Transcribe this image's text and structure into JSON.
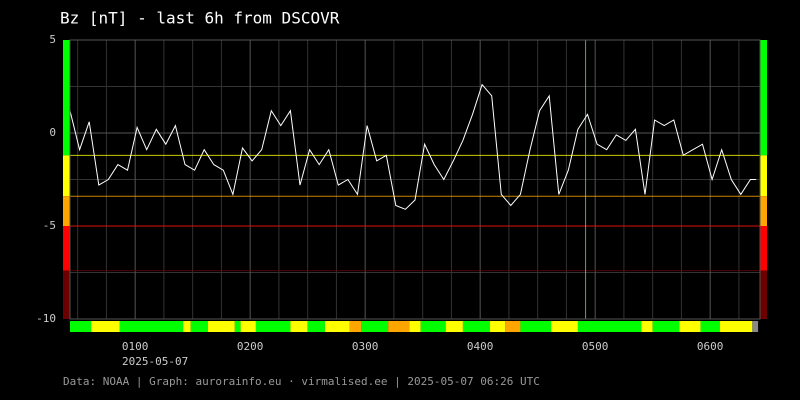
{
  "chart_data": {
    "type": "line",
    "title": "Bz [nT] - last 6h from DSCOVR",
    "footer": "Data: NOAA | Graph: aurorainfo.eu · virmalised.ee | 2025-05-07 06:26 UTC",
    "date_label": "2025-05-07",
    "xlim": [
      26,
      386
    ],
    "xticks": [
      {
        "value": 60,
        "label": "0100"
      },
      {
        "value": 120,
        "label": "0200"
      },
      {
        "value": 180,
        "label": "0300"
      },
      {
        "value": 240,
        "label": "0400"
      },
      {
        "value": 300,
        "label": "0500"
      },
      {
        "value": 360,
        "label": "0600"
      }
    ],
    "x_minor_ticks": [
      30,
      45,
      75,
      90,
      105,
      135,
      150,
      165,
      195,
      210,
      225,
      255,
      270,
      285,
      315,
      330,
      345,
      375
    ],
    "ylim": [
      -10,
      5
    ],
    "yticks": [
      5,
      0,
      -5,
      -10
    ],
    "y_minor_ticks": [
      2.5,
      -2.5,
      -7.5
    ],
    "grid": true,
    "line_color": "#ffffff",
    "x": [
      26,
      31,
      36,
      41,
      46,
      51,
      56,
      61,
      66,
      71,
      76,
      81,
      86,
      91,
      96,
      101,
      106,
      111,
      116,
      121,
      126,
      131,
      136,
      141,
      146,
      151,
      156,
      161,
      166,
      171,
      176,
      181,
      186,
      191,
      196,
      201,
      206,
      211,
      216,
      221,
      226,
      231,
      236,
      241,
      246,
      251,
      256,
      261,
      266,
      271,
      276,
      281,
      286,
      291,
      296,
      301,
      306,
      311,
      316,
      321,
      326,
      331,
      336,
      341,
      346,
      351,
      356,
      361,
      366,
      371,
      376,
      381,
      384
    ],
    "values": [
      1.2,
      -0.9,
      0.6,
      -2.8,
      -2.5,
      -1.7,
      -2.0,
      0.3,
      -0.9,
      0.2,
      -0.6,
      0.4,
      -1.7,
      -2.0,
      -0.9,
      -1.7,
      -2.0,
      -3.3,
      -0.8,
      -1.5,
      -0.9,
      1.2,
      0.4,
      1.2,
      -2.8,
      -0.9,
      -1.7,
      -0.9,
      -2.8,
      -2.5,
      -3.3,
      0.4,
      -1.5,
      -1.2,
      -3.9,
      -4.1,
      -3.6,
      -0.6,
      -1.7,
      -2.5,
      -1.5,
      -0.4,
      1.0,
      2.6,
      2.0,
      -3.3,
      -3.9,
      -3.3,
      -0.9,
      1.2,
      2.0,
      -3.3,
      -2.0,
      0.2,
      1.0,
      -0.6,
      -0.9,
      -0.1,
      -0.4,
      0.2,
      -3.3,
      0.7,
      0.4,
      0.7,
      -1.2,
      -0.9,
      -0.6,
      -2.5,
      -0.9,
      -2.5,
      -3.3,
      -2.5,
      -2.5
    ],
    "thresholds": [
      -1.2,
      -3.4,
      -5,
      -7.4
    ],
    "zone_colors": [
      "#00ff00",
      "#ffff00",
      "#ffa500",
      "#ff0000",
      "#6b0000"
    ],
    "marker_x": 295,
    "marker_color": "#66ff66",
    "strip": {
      "starts": [
        26,
        37,
        52,
        85,
        89,
        98,
        112,
        115,
        123,
        141,
        150,
        159,
        172,
        178,
        192,
        203,
        209,
        222,
        231,
        245,
        253,
        261,
        277,
        291,
        324,
        330,
        344,
        355,
        365,
        382
      ],
      "end": 385,
      "colors": [
        "#00ff00",
        "#ffff00",
        "#00ff00",
        "#ffff00",
        "#00ff00",
        "#ffff00",
        "#00ff00",
        "#ffff00",
        "#00ff00",
        "#ffff00",
        "#00ff00",
        "#ffff00",
        "#ffa500",
        "#00ff00",
        "#ffa500",
        "#ffff00",
        "#00ff00",
        "#ffff00",
        "#00ff00",
        "#ffff00",
        "#ffa500",
        "#00ff00",
        "#ffff00",
        "#00ff00",
        "#ffff00",
        "#00ff00",
        "#ffff00",
        "#00ff00",
        "#ffff00",
        "#888888"
      ]
    }
  }
}
